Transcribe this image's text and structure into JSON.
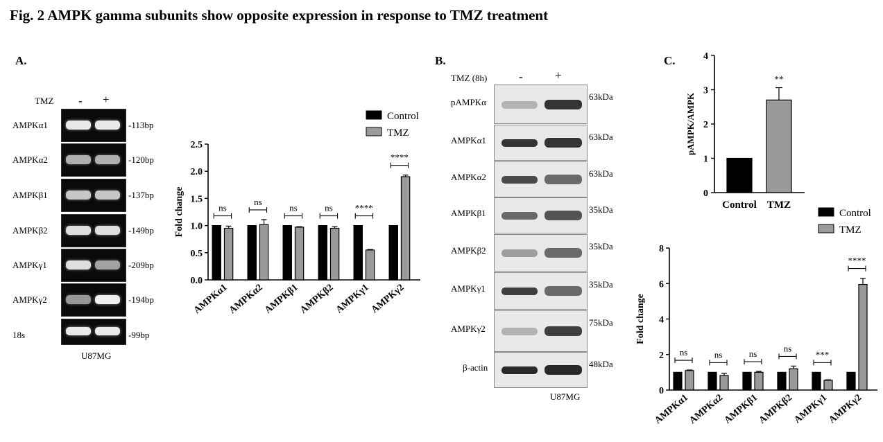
{
  "figure": {
    "title": "Fig. 2   AMPK gamma subunits show opposite expression in response to TMZ treatment"
  },
  "panel_a": {
    "letter": "A.",
    "tmz_label": "TMZ",
    "minus": "-",
    "plus": "+",
    "cell_line": "U87MG",
    "gel_rows": [
      {
        "gene": "AMPKα1",
        "size": "-113bp"
      },
      {
        "gene": "AMPKα2",
        "size": "-120bp"
      },
      {
        "gene": "AMPKβ1",
        "size": "-137bp"
      },
      {
        "gene": "AMPKβ2",
        "size": "-149bp"
      },
      {
        "gene": "AMPKγ1",
        "size": "-209bp"
      },
      {
        "gene": "AMPKγ2",
        "size": "-194bp"
      },
      {
        "gene": "18s",
        "size": "-99bp"
      }
    ]
  },
  "panel_b": {
    "letter": "B.",
    "tmz_label": "TMZ (8h)",
    "minus": "-",
    "plus": "+",
    "cell_line": "U87MG",
    "blot_rows": [
      {
        "protein": "pAMPKα",
        "size": "63kDa"
      },
      {
        "protein": "AMPKα1",
        "size": "63kDa"
      },
      {
        "protein": "AMPKα2",
        "size": "63kDa"
      },
      {
        "protein": "AMPKβ1",
        "size": "35kDa"
      },
      {
        "protein": "AMPKβ2",
        "size": "35kDa"
      },
      {
        "protein": "AMPKγ1",
        "size": "35kDa"
      },
      {
        "protein": "AMPKγ2",
        "size": "75kDa"
      },
      {
        "protein": "β-actin",
        "size": "48kDa"
      }
    ]
  },
  "panel_c": {
    "letter": "C."
  },
  "chart_data": [
    {
      "id": "chart-a",
      "type": "bar",
      "categories": [
        "AMPKα1",
        "AMPKα2",
        "AMPKβ1",
        "AMPKβ2",
        "AMPKγ1",
        "AMPKγ2"
      ],
      "series": [
        {
          "name": "Control",
          "color": "#000000",
          "values": [
            1.0,
            1.0,
            1.0,
            1.0,
            1.0,
            1.0
          ],
          "errors": [
            0,
            0,
            0,
            0,
            0,
            0
          ]
        },
        {
          "name": "TMZ",
          "color": "#9a9a9a",
          "values": [
            0.95,
            1.02,
            0.97,
            0.95,
            0.55,
            1.9
          ],
          "errors": [
            0.04,
            0.09,
            0.01,
            0.03,
            0.01,
            0.03
          ]
        }
      ],
      "significance": [
        "ns",
        "ns",
        "ns",
        "ns",
        "****",
        "****"
      ],
      "ylabel": "Fold change",
      "ylim": [
        0,
        2.5
      ],
      "yticks": [
        "0.0",
        "0.5",
        "1.0",
        "1.5",
        "2.0",
        "2.5"
      ],
      "legend": "top-right"
    },
    {
      "id": "chart-c-top",
      "type": "bar",
      "categories": [
        "Control",
        "TMZ"
      ],
      "values": [
        1.0,
        2.7
      ],
      "errors": [
        0,
        0.36
      ],
      "colors": [
        "#000000",
        "#9a9a9a"
      ],
      "significance": [
        "",
        "**"
      ],
      "ylabel": "pAMPK/AMPK",
      "ylim": [
        0,
        4
      ],
      "yticks": [
        "0",
        "1",
        "2",
        "3",
        "4"
      ]
    },
    {
      "id": "chart-c-bottom",
      "type": "bar",
      "categories": [
        "AMPKα1",
        "AMPKα2",
        "AMPKβ1",
        "AMPKβ2",
        "AMPKγ1",
        "AMPKγ2"
      ],
      "series": [
        {
          "name": "Control",
          "color": "#000000",
          "values": [
            1.0,
            1.0,
            1.0,
            1.0,
            1.0,
            1.0
          ],
          "errors": [
            0,
            0,
            0,
            0,
            0,
            0
          ]
        },
        {
          "name": "TMZ",
          "color": "#9a9a9a",
          "values": [
            1.1,
            0.82,
            1.0,
            1.2,
            0.55,
            5.95
          ],
          "errors": [
            0.03,
            0.12,
            0.05,
            0.15,
            0.03,
            0.35
          ]
        }
      ],
      "significance": [
        "ns",
        "ns",
        "ns",
        "ns",
        "***",
        "****"
      ],
      "ylabel": "Fold change",
      "ylim": [
        0,
        8
      ],
      "yticks": [
        "0",
        "2",
        "4",
        "6",
        "8"
      ],
      "legend": "top-right"
    }
  ]
}
